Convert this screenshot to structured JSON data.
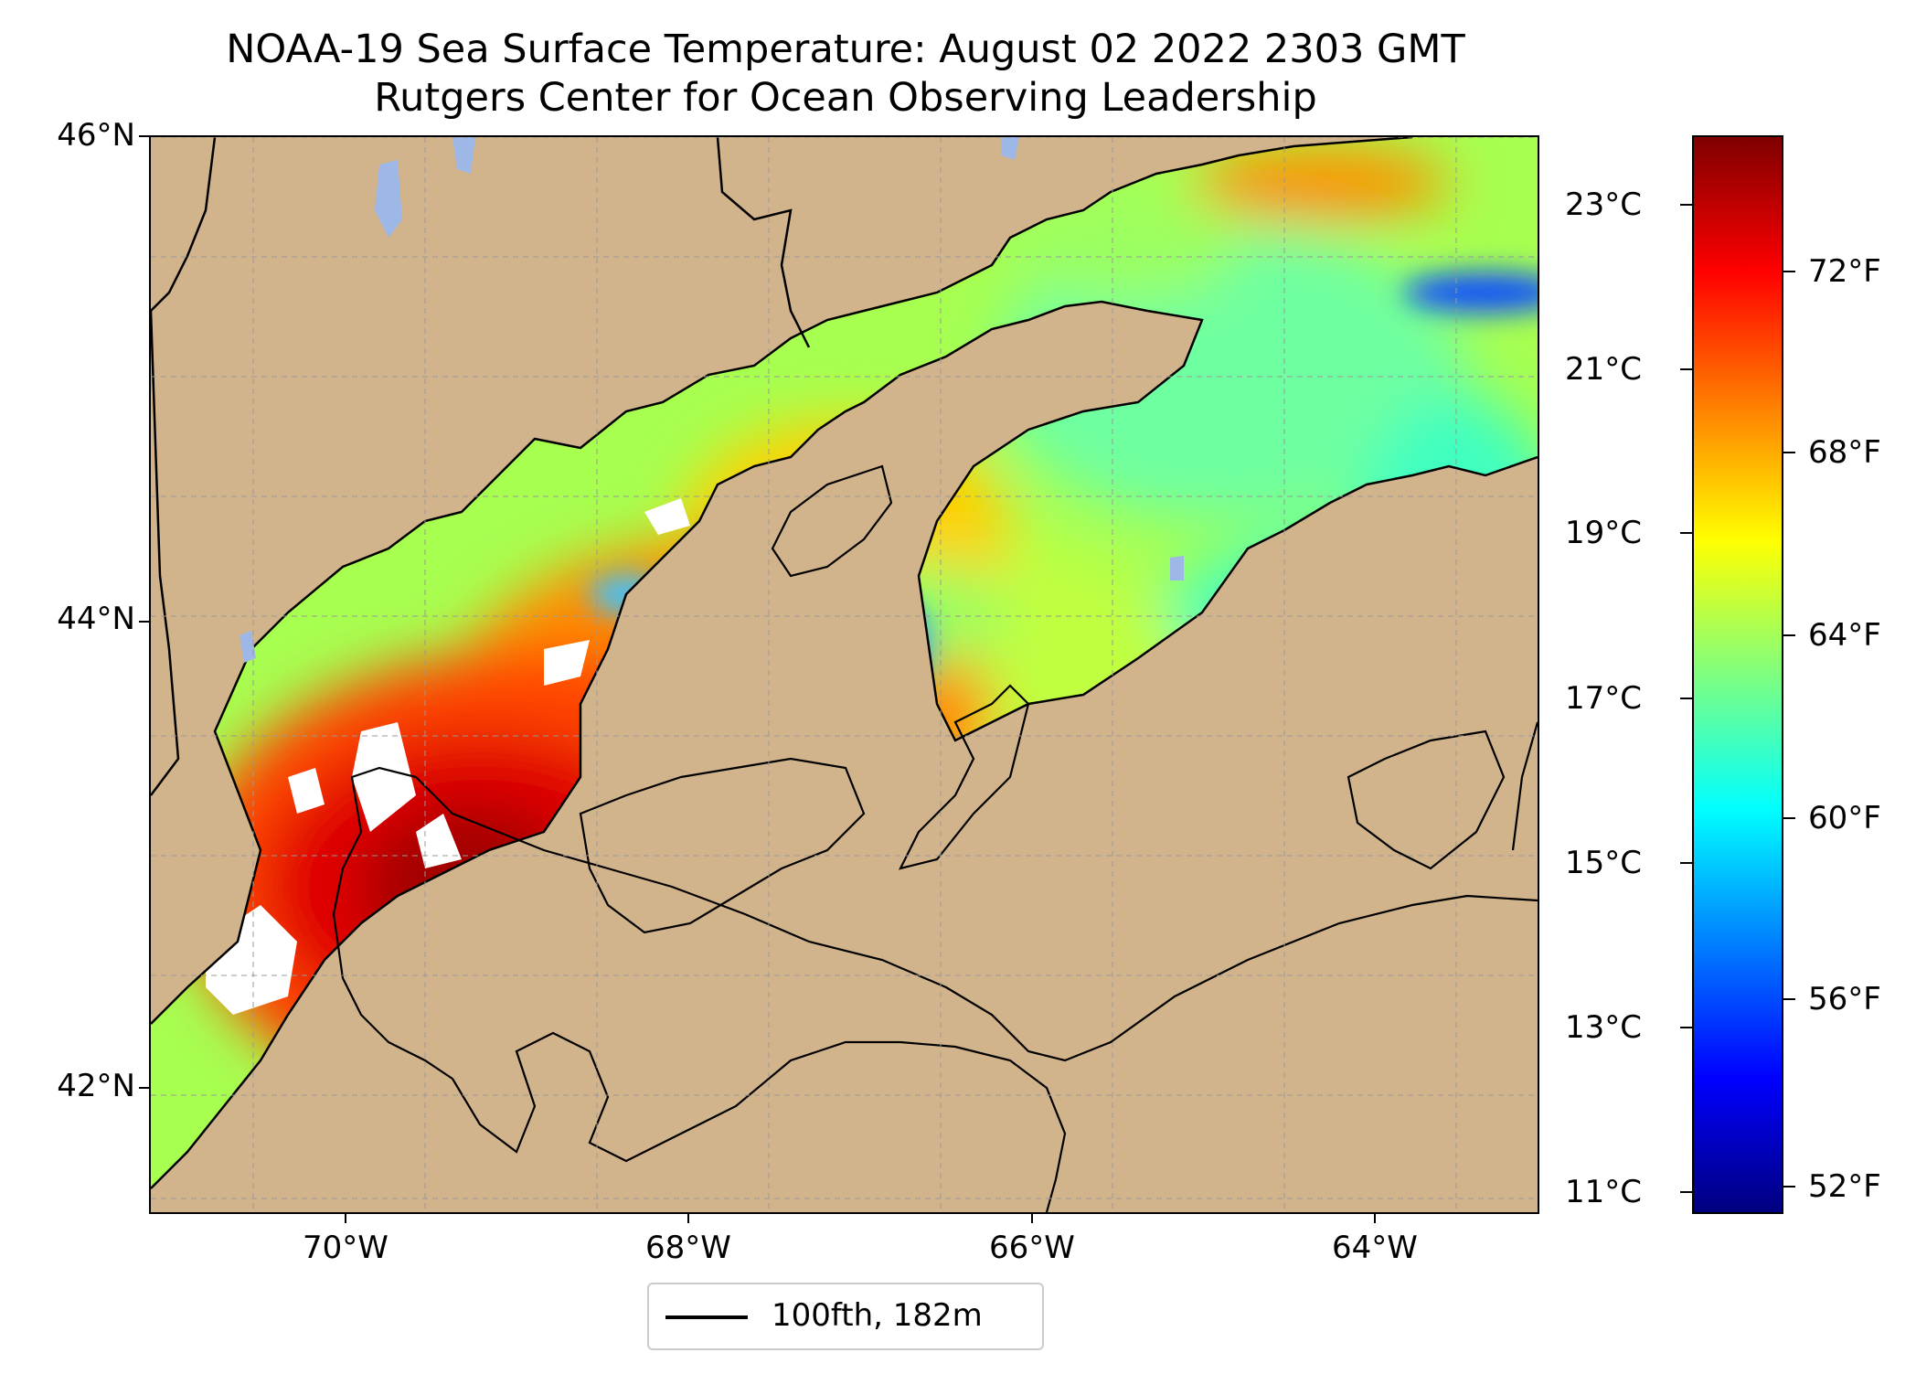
{
  "title_line1": "NOAA-19 Sea Surface Temperature: August 02 2022 2303 GMT",
  "title_line2": "Rutgers Center for Ocean Observing Leadership",
  "lat_labels": [
    "46°N",
    "44°N",
    "42°N"
  ],
  "lon_labels": [
    "70°W",
    "68°W",
    "66°W",
    "64°W"
  ],
  "colorbar": {
    "celsius_labels": [
      "23°C",
      "21°C",
      "19°C",
      "17°C",
      "15°C",
      "13°C",
      "11°C"
    ],
    "fahrenheit_labels": [
      "72°F",
      "68°F",
      "64°F",
      "60°F",
      "56°F",
      "52°F"
    ],
    "colors": [
      "#00007f",
      "#0000ff",
      "#007fff",
      "#00ffff",
      "#7fff7f",
      "#ffff00",
      "#ff7f00",
      "#ff0000",
      "#7f0000"
    ]
  },
  "legend": {
    "label": "100fth, 182m"
  },
  "colors": {
    "land": "#d2b48c",
    "lakes": "#9db7e6",
    "no_data": "#ffffff"
  },
  "chart_data": {
    "type": "heatmap",
    "title": "NOAA-19 Sea Surface Temperature: August 02 2022 2303 GMT",
    "subtitle": "Rutgers Center for Ocean Observing Leadership",
    "lon_range": [
      -71.1,
      -63.0
    ],
    "lat_range": [
      41.5,
      46.0
    ],
    "colorbar_celsius_ticks": [
      23,
      21,
      19,
      17,
      15,
      13,
      11
    ],
    "colorbar_fahrenheit_ticks": [
      72,
      68,
      64,
      60,
      56,
      52
    ],
    "colormap": "jet",
    "contour": "100fth, 182m",
    "grid": true,
    "legend_position": "below"
  }
}
